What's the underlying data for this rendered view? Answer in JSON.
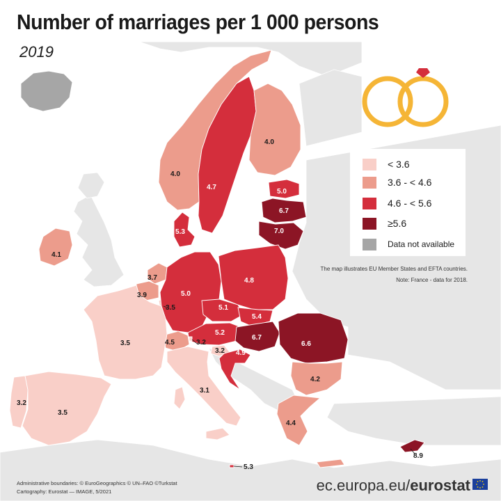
{
  "title": "Number of marriages per 1 000 persons",
  "subtitle": "2019",
  "colors": {
    "sea": "#ffffff",
    "land_other": "#e6e6e6",
    "not_available": "#a6a6a6",
    "class_1": "#f9cfc8",
    "class_2": "#ec9c8c",
    "class_3": "#d42e3c",
    "class_4": "#8c1525",
    "border": "#ffffff",
    "ring": "#f5b536",
    "gem": "#d42e3c"
  },
  "legend": {
    "items": [
      {
        "label": "< 3.6",
        "color": "#f9cfc8"
      },
      {
        "label": "3.6 - < 4.6",
        "color": "#ec9c8c"
      },
      {
        "label": "4.6 - < 5.6",
        "color": "#d42e3c"
      },
      {
        "label": "≥5.6",
        "color": "#8c1525"
      },
      {
        "label": "Data not available",
        "color": "#a6a6a6"
      }
    ]
  },
  "note_line1": "The map illustrates EU Member States and EFTA countries.",
  "note_line2": "Note: France - data for 2018.",
  "credits_line1": "Administrative boundaries: © EuroGeographics © UN–FAO ©Turkstat",
  "credits_line2": "Cartography: Eurostat — IMAGE, 5/2021",
  "footer": {
    "domain": "ec.europa.eu/",
    "brand": "eurostat"
  },
  "icons": {
    "rings": "wedding-rings-icon",
    "flag": "eu-flag-icon"
  },
  "countries": [
    {
      "id": "iceland",
      "class": "na"
    },
    {
      "id": "norway",
      "value": "4.0",
      "class": "2"
    },
    {
      "id": "sweden",
      "value": "4.7",
      "class": "3"
    },
    {
      "id": "finland",
      "value": "4.0",
      "class": "2"
    },
    {
      "id": "estonia",
      "value": "5.0",
      "class": "3"
    },
    {
      "id": "latvia",
      "value": "6.7",
      "class": "4"
    },
    {
      "id": "lithuania",
      "value": "7.0",
      "class": "4"
    },
    {
      "id": "denmark",
      "value": "5.3",
      "class": "3"
    },
    {
      "id": "ireland",
      "value": "4.1",
      "class": "2"
    },
    {
      "id": "netherlands",
      "value": "3.7",
      "class": "2"
    },
    {
      "id": "belgium",
      "value": "3.9",
      "class": "2"
    },
    {
      "id": "luxembourg",
      "value": "3.5",
      "class": "1"
    },
    {
      "id": "germany",
      "value": "5.0",
      "class": "3"
    },
    {
      "id": "poland",
      "value": "4.8",
      "class": "3"
    },
    {
      "id": "czechia",
      "value": "5.1",
      "class": "3"
    },
    {
      "id": "slovakia",
      "value": "5.4",
      "class": "3"
    },
    {
      "id": "austria",
      "value": "5.2",
      "class": "3"
    },
    {
      "id": "hungary",
      "value": "6.7",
      "class": "4"
    },
    {
      "id": "romania",
      "value": "6.6",
      "class": "4"
    },
    {
      "id": "switzerland",
      "value": "4.5",
      "class": "2"
    },
    {
      "id": "liechtenstein",
      "value": "3.2",
      "class": "1"
    },
    {
      "id": "slovenia",
      "value": "3.2",
      "class": "1"
    },
    {
      "id": "croatia",
      "value": "4.9",
      "class": "3"
    },
    {
      "id": "france",
      "value": "3.5",
      "class": "1"
    },
    {
      "id": "portugal",
      "value": "3.2",
      "class": "1"
    },
    {
      "id": "spain",
      "value": "3.5",
      "class": "1"
    },
    {
      "id": "italy",
      "value": "3.1",
      "class": "1"
    },
    {
      "id": "malta",
      "value": "5.3",
      "class": "3"
    },
    {
      "id": "bulgaria",
      "value": "4.2",
      "class": "2"
    },
    {
      "id": "greece",
      "value": "4.4",
      "class": "2"
    },
    {
      "id": "cyprus",
      "value": "8.9",
      "class": "4"
    }
  ]
}
